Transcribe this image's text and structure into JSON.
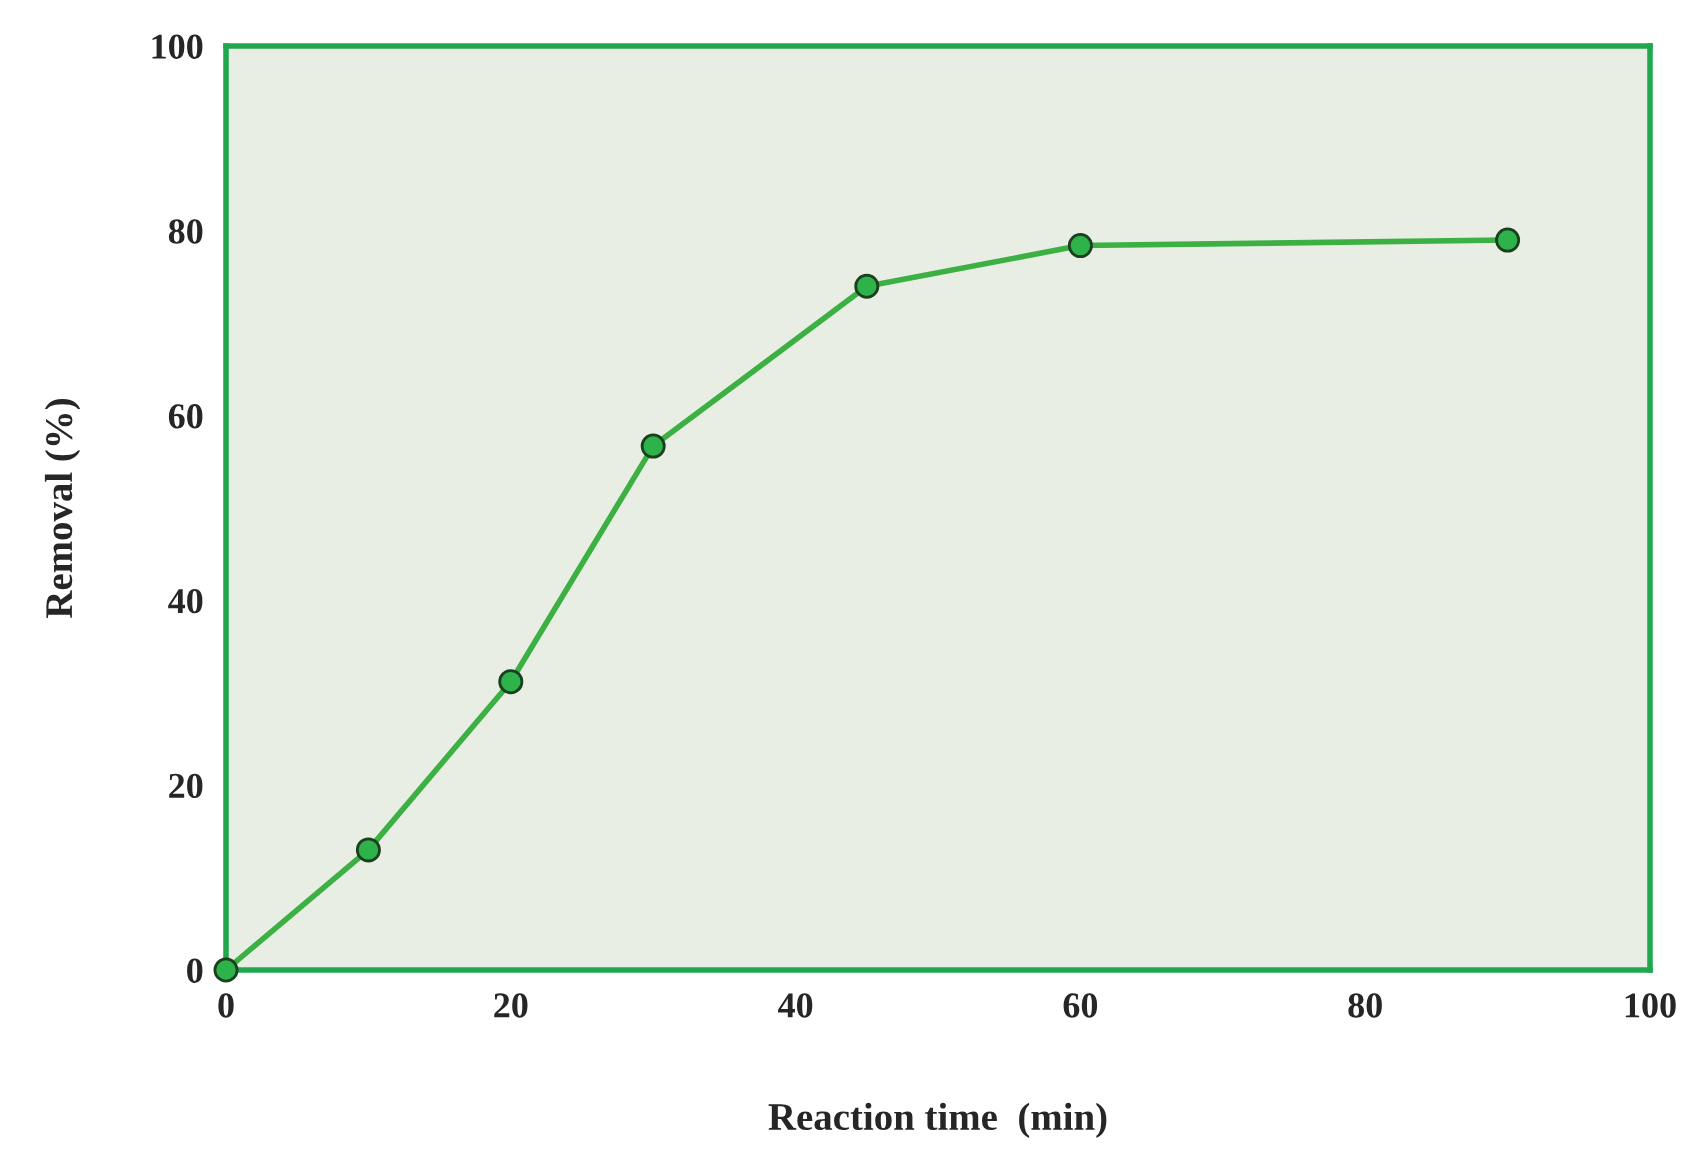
{
  "chart_data": {
    "type": "line",
    "xlabel": "Reaction time  (min)",
    "ylabel": "Removal (%)",
    "x": [
      0,
      10,
      20,
      30,
      45,
      60,
      90
    ],
    "series": [
      {
        "color": "#3cb043",
        "values": [
          0,
          13.0,
          31.2,
          56.7,
          74.0,
          78.4,
          79.0
        ]
      }
    ],
    "xlim": [
      0,
      100
    ],
    "xticks": [
      0,
      20,
      40,
      60,
      80,
      100
    ],
    "ylim": [
      0,
      100
    ],
    "yticks": [
      0,
      20,
      40,
      60,
      80,
      100
    ],
    "grid": false,
    "legend": false,
    "marker": "circle",
    "line_style": "solid"
  }
}
